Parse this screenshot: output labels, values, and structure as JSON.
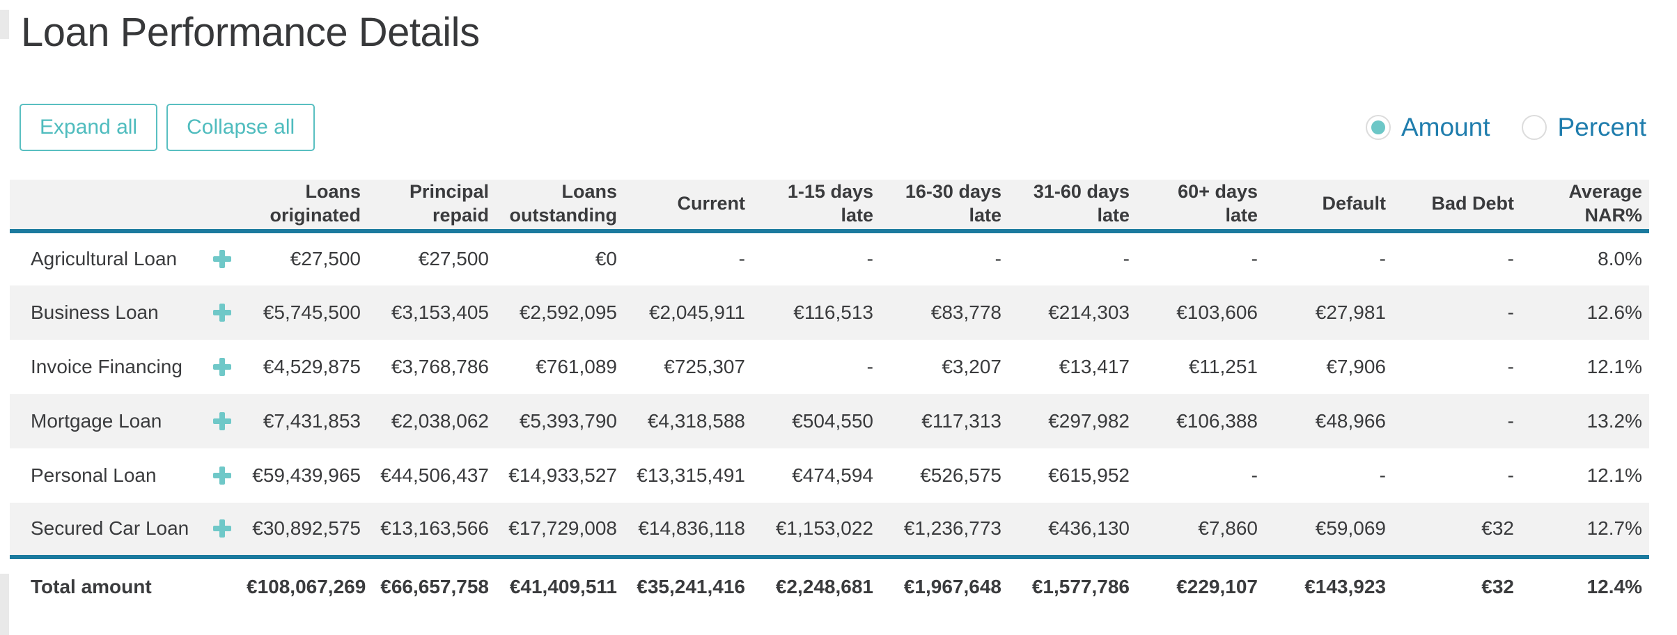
{
  "page": {
    "title": "Loan Performance Details"
  },
  "toolbar": {
    "expand_label": "Expand all",
    "collapse_label": "Collapse all"
  },
  "view_toggle": {
    "options": [
      {
        "label": "Amount",
        "selected": true
      },
      {
        "label": "Percent",
        "selected": false
      }
    ]
  },
  "table": {
    "columns": [
      "Loans originated",
      "Principal repaid",
      "Loans outstanding",
      "Current",
      "1-15 days late",
      "16-30 days late",
      "31-60 days late",
      "60+ days late",
      "Default",
      "Bad Debt",
      "Average NAR%"
    ],
    "rows": [
      {
        "label": "Agricultural Loan",
        "expandable": true,
        "values": [
          "€27,500",
          "€27,500",
          "€0",
          "-",
          "-",
          "-",
          "-",
          "-",
          "-",
          "-",
          "8.0%"
        ]
      },
      {
        "label": "Business Loan",
        "expandable": true,
        "values": [
          "€5,745,500",
          "€3,153,405",
          "€2,592,095",
          "€2,045,911",
          "€116,513",
          "€83,778",
          "€214,303",
          "€103,606",
          "€27,981",
          "-",
          "12.6%"
        ]
      },
      {
        "label": "Invoice Financing",
        "expandable": true,
        "values": [
          "€4,529,875",
          "€3,768,786",
          "€761,089",
          "€725,307",
          "-",
          "€3,207",
          "€13,417",
          "€11,251",
          "€7,906",
          "-",
          "12.1%"
        ]
      },
      {
        "label": "Mortgage Loan",
        "expandable": true,
        "values": [
          "€7,431,853",
          "€2,038,062",
          "€5,393,790",
          "€4,318,588",
          "€504,550",
          "€117,313",
          "€297,982",
          "€106,388",
          "€48,966",
          "-",
          "13.2%"
        ]
      },
      {
        "label": "Personal Loan",
        "expandable": true,
        "values": [
          "€59,439,965",
          "€44,506,437",
          "€14,933,527",
          "€13,315,491",
          "€474,594",
          "€526,575",
          "€615,952",
          "-",
          "-",
          "-",
          "12.1%"
        ]
      },
      {
        "label": "Secured Car Loan",
        "expandable": true,
        "values": [
          "€30,892,575",
          "€13,163,566",
          "€17,729,008",
          "€14,836,118",
          "€1,153,022",
          "€1,236,773",
          "€436,130",
          "€7,860",
          "€59,069",
          "€32",
          "12.7%"
        ]
      }
    ],
    "total": {
      "label": "Total amount",
      "values": [
        "€108,067,269",
        "€66,657,758",
        "€41,409,511",
        "€35,241,416",
        "€2,248,681",
        "€1,967,648",
        "€1,577,786",
        "€229,107",
        "€143,923",
        "€32",
        "12.4%"
      ]
    }
  },
  "colors": {
    "accent_teal": "#5fc3c3",
    "plus_icon": "#6fc8c8",
    "table_rule_teal": "#1b7a9e",
    "radio_label_blue": "#1f7dad",
    "stripe_gray": "#f2f2f2",
    "text_dark": "#3a3b3d"
  }
}
